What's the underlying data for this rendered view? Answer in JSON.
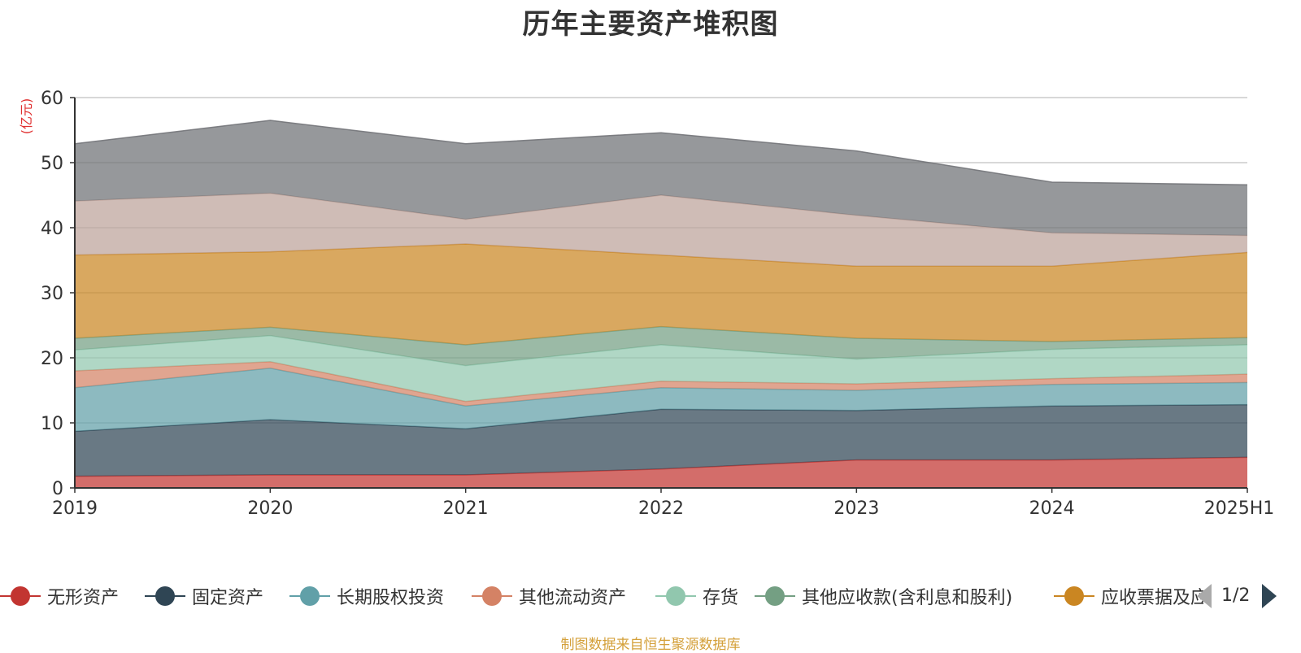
{
  "chart_data": {
    "type": "area",
    "stacked": true,
    "title": "历年主要资产堆积图",
    "unit_label": "(亿元)",
    "categories": [
      "2019",
      "2020",
      "2021",
      "2022",
      "2023",
      "2024",
      "2025H1"
    ],
    "ylim": [
      0,
      60
    ],
    "yticks": [
      0,
      10,
      20,
      30,
      40,
      50,
      60
    ],
    "grid": true,
    "legend_position": "bottom",
    "series": [
      {
        "name": "无形资产",
        "color": "#c23531",
        "values": [
          1.8,
          2.0,
          2.0,
          2.9,
          4.3,
          4.3,
          4.7
        ]
      },
      {
        "name": "固定资产",
        "color": "#2f4554",
        "values": [
          6.9,
          8.5,
          7.1,
          9.2,
          7.6,
          8.3,
          8.1
        ]
      },
      {
        "name": "长期股权投资",
        "color": "#61a0a8",
        "values": [
          6.7,
          7.9,
          3.5,
          3.3,
          3.1,
          3.3,
          3.4
        ]
      },
      {
        "name": "其他流动资产",
        "color": "#d48265",
        "values": [
          2.6,
          1.0,
          0.7,
          1.0,
          1.0,
          0.9,
          1.3
        ]
      },
      {
        "name": "存货",
        "color": "#91c7ae",
        "values": [
          3.2,
          4.0,
          5.5,
          5.6,
          3.8,
          4.5,
          4.5
        ]
      },
      {
        "name": "其他应收款(含利息和股利)",
        "color": "#749f83",
        "values": [
          1.8,
          1.3,
          3.2,
          2.8,
          3.2,
          1.2,
          1.1
        ]
      },
      {
        "name": "应收票据及应收账款",
        "color": "#ca8622",
        "values": [
          12.8,
          11.6,
          15.5,
          11.0,
          11.1,
          11.6,
          13.1
        ]
      },
      {
        "name": "",
        "color": "#bda29a",
        "values": [
          8.3,
          9.0,
          3.8,
          9.2,
          7.8,
          5.1,
          2.6
        ]
      },
      {
        "name": "",
        "color": "#6e7074",
        "values": [
          8.8,
          11.2,
          11.6,
          9.6,
          9.9,
          7.8,
          7.8
        ]
      }
    ]
  },
  "legend": {
    "visible_labels": [
      "无形资产",
      "固定资产",
      "长期股权投资",
      "其他流动资产",
      "存货",
      "其他应收款(含利息和股利)",
      "应收票据及应收账款"
    ],
    "page_indicator": "1/2"
  },
  "footer": {
    "source_note": "制图数据来自恒生聚源数据库"
  }
}
